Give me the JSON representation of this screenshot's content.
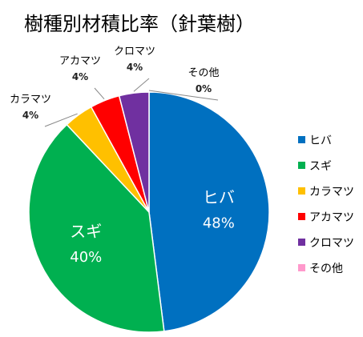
{
  "chart_data": {
    "type": "pie",
    "title": "樹種別材積比率（針葉樹）",
    "categories": [
      "ヒバ",
      "スギ",
      "カラマツ",
      "アカマツ",
      "クロマツ",
      "その他"
    ],
    "values": [
      48,
      40,
      4,
      4,
      4,
      0
    ],
    "value_labels": [
      "48%",
      "40%",
      "4%",
      "4%",
      "4%",
      "0%"
    ],
    "colors": [
      "#0070C0",
      "#00B050",
      "#FFC000",
      "#FF0000",
      "#7030A0",
      "#FF99CC"
    ],
    "legend_position": "right"
  }
}
